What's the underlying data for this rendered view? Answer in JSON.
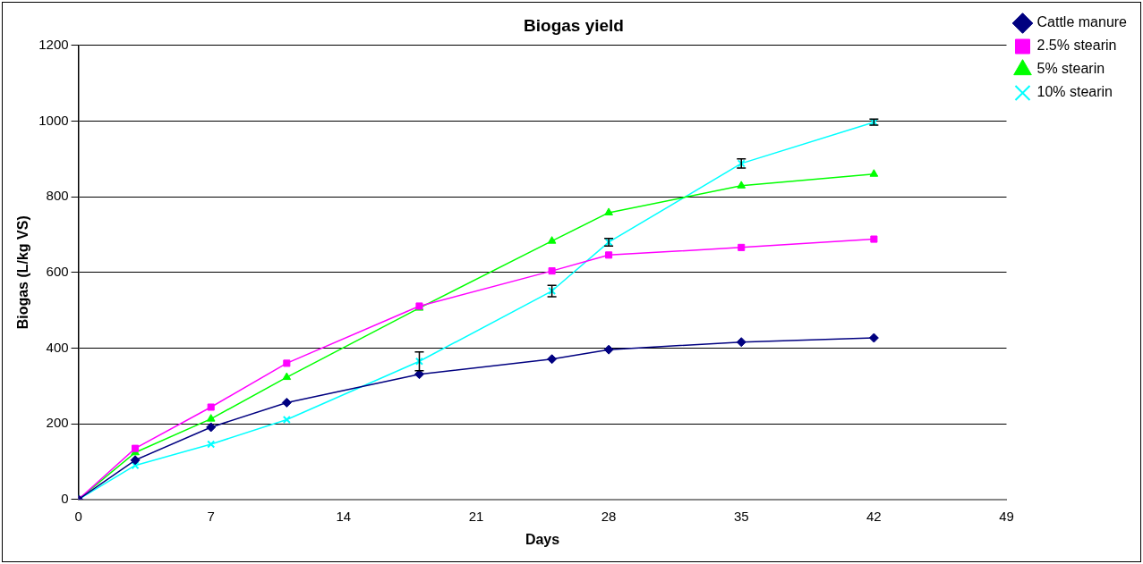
{
  "chart_data": {
    "type": "line",
    "title": "Biogas yield",
    "xlabel": "Days",
    "ylabel": "Biogas (L/kg VS)",
    "x": [
      0,
      3,
      7,
      11,
      18,
      25,
      28,
      35,
      42
    ],
    "xlim": [
      0,
      49
    ],
    "xticks": [
      0,
      7,
      14,
      21,
      28,
      35,
      42,
      49
    ],
    "ylim": [
      0,
      1200
    ],
    "yticks": [
      0,
      200,
      400,
      600,
      800,
      1000,
      1200
    ],
    "grid": "y",
    "legend": "right",
    "series": [
      {
        "name": "Cattle manure",
        "color": "#000080",
        "marker": "diamond",
        "values": [
          0,
          104,
          191,
          256,
          331,
          371,
          396,
          416,
          427
        ]
      },
      {
        "name": "2.5% stearin",
        "color": "#ff00ff",
        "marker": "square",
        "values": [
          0,
          135,
          244,
          360,
          511,
          604,
          646,
          666,
          688
        ]
      },
      {
        "name": "5% stearin",
        "color": "#00ff00",
        "marker": "triangle",
        "values": [
          0,
          124,
          213,
          323,
          506,
          683,
          758,
          829,
          860
        ]
      },
      {
        "name": "10% stearin",
        "color": "#00ffff",
        "marker": "cross",
        "values": [
          0,
          90,
          146,
          211,
          365,
          551,
          680,
          888,
          997
        ],
        "errors": [
          null,
          null,
          null,
          null,
          25,
          15,
          10,
          12,
          8
        ]
      }
    ]
  }
}
